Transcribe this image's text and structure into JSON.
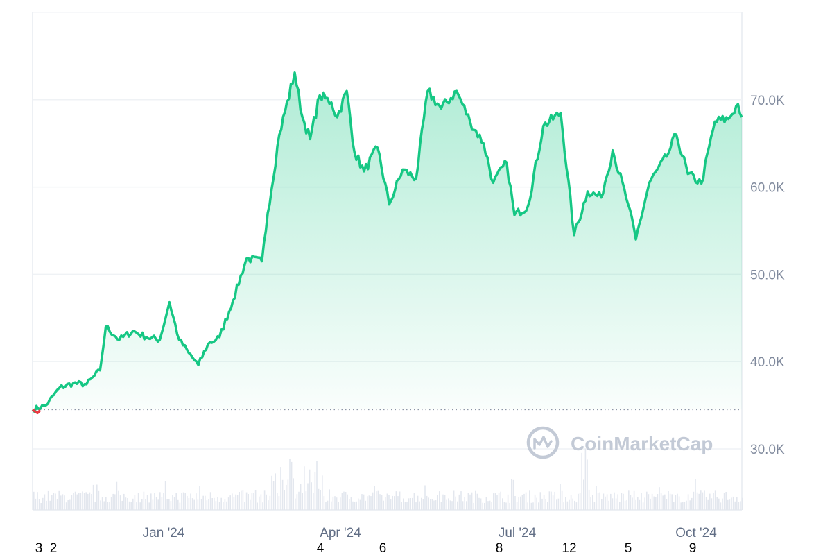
{
  "chart_data": {
    "type": "area",
    "y_axis": {
      "ticks": [
        30000,
        40000,
        50000,
        60000,
        70000
      ],
      "tick_labels": [
        "30.0K",
        "40.0K",
        "50.0K",
        "60.0K",
        "70.0K"
      ],
      "ylim": [
        23000,
        80000
      ],
      "position": "right"
    },
    "x_axis": {
      "tick_labels": [
        "Jan '24",
        "Apr '24",
        "Jul '24",
        "Oct '24"
      ],
      "xlim": [
        "2023-10-29",
        "2024-10-31"
      ]
    },
    "baseline": {
      "value": 34500,
      "style": "dotted"
    },
    "grid": true,
    "corner_labels": [
      "3",
      "2",
      "4",
      "6",
      "8",
      "12",
      "5",
      "9"
    ],
    "watermark": "CoinMarketCap",
    "colors": {
      "line": "#16c784",
      "negative": "#ea3943",
      "grid": "#eff2f5",
      "watermark": "#c3cad6"
    },
    "series": [
      {
        "points": [
          [
            "2023-10-29",
            34500
          ],
          [
            "2023-11-05",
            35000
          ],
          [
            "2023-11-12",
            37000
          ],
          [
            "2023-11-19",
            37500
          ],
          [
            "2023-11-26",
            37400
          ],
          [
            "2023-12-03",
            39000
          ],
          [
            "2023-12-06",
            44000
          ],
          [
            "2023-12-13",
            42500
          ],
          [
            "2023-12-20",
            43500
          ],
          [
            "2023-12-27",
            42800
          ],
          [
            "2024-01-03",
            42500
          ],
          [
            "2024-01-08",
            46800
          ],
          [
            "2024-01-13",
            42500
          ],
          [
            "2024-01-18",
            41000
          ],
          [
            "2024-01-23",
            39600
          ],
          [
            "2024-01-28",
            42000
          ],
          [
            "2024-02-03",
            42800
          ],
          [
            "2024-02-10",
            47000
          ],
          [
            "2024-02-17",
            51800
          ],
          [
            "2024-02-25",
            51500
          ],
          [
            "2024-02-28",
            57000
          ],
          [
            "2024-03-05",
            66000
          ],
          [
            "2024-03-13",
            73100
          ],
          [
            "2024-03-17",
            68000
          ],
          [
            "2024-03-21",
            65500
          ],
          [
            "2024-03-26",
            70500
          ],
          [
            "2024-04-01",
            69700
          ],
          [
            "2024-04-04",
            68000
          ],
          [
            "2024-04-09",
            71000
          ],
          [
            "2024-04-13",
            64000
          ],
          [
            "2024-04-18",
            61800
          ],
          [
            "2024-04-25",
            64500
          ],
          [
            "2024-05-01",
            58000
          ],
          [
            "2024-05-08",
            62000
          ],
          [
            "2024-05-15",
            61000
          ],
          [
            "2024-05-21",
            71000
          ],
          [
            "2024-05-28",
            69000
          ],
          [
            "2024-06-05",
            71000
          ],
          [
            "2024-06-12",
            67500
          ],
          [
            "2024-06-19",
            65000
          ],
          [
            "2024-06-24",
            60500
          ],
          [
            "2024-07-01",
            62800
          ],
          [
            "2024-07-05",
            56800
          ],
          [
            "2024-07-12",
            57800
          ],
          [
            "2024-07-20",
            67000
          ],
          [
            "2024-07-29",
            68500
          ],
          [
            "2024-08-05",
            54500
          ],
          [
            "2024-08-12",
            59500
          ],
          [
            "2024-08-19",
            58800
          ],
          [
            "2024-08-25",
            64200
          ],
          [
            "2024-09-02",
            58000
          ],
          [
            "2024-09-06",
            54000
          ],
          [
            "2024-09-13",
            60500
          ],
          [
            "2024-09-22",
            63500
          ],
          [
            "2024-09-27",
            66000
          ],
          [
            "2024-10-03",
            61500
          ],
          [
            "2024-10-10",
            60400
          ],
          [
            "2024-10-17",
            67500
          ],
          [
            "2024-10-24",
            67800
          ],
          [
            "2024-10-29",
            69500
          ],
          [
            "2024-10-31",
            68000
          ]
        ]
      }
    ]
  }
}
